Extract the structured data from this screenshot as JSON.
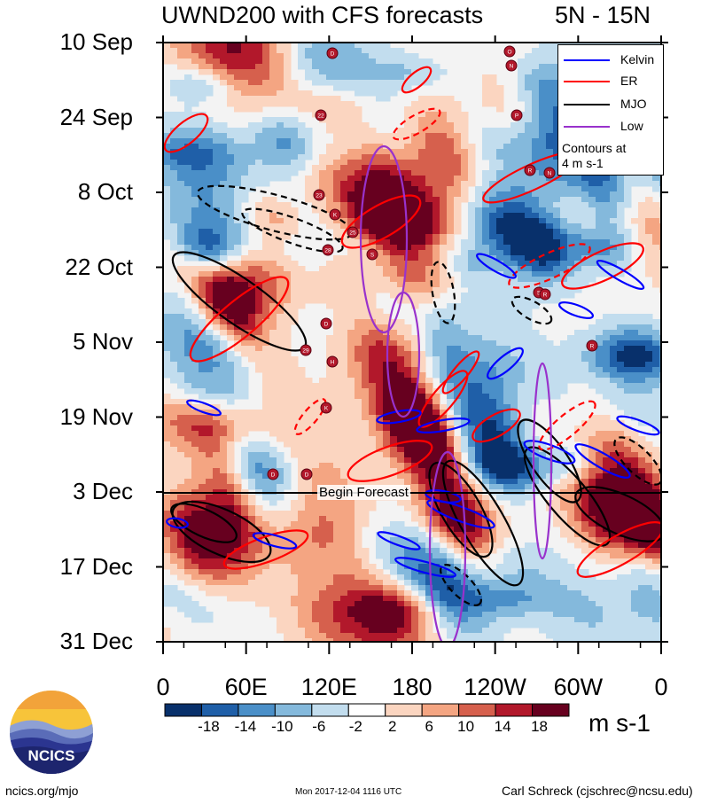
{
  "title": {
    "left": "UWND200 with CFS forecasts",
    "right": "5N - 15N"
  },
  "chart_data": {
    "type": "heatmap",
    "title": "UWND200 with CFS forecasts",
    "region": "5N - 15N",
    "y_ticks": [
      "10 Sep",
      "24 Sep",
      "8 Oct",
      "22 Oct",
      "5 Nov",
      "19 Nov",
      "3 Dec",
      "17 Dec",
      "31 Dec"
    ],
    "x_ticks": [
      "0",
      "60E",
      "120E",
      "180",
      "120W",
      "60W",
      "0"
    ],
    "x_range": [
      0,
      360
    ],
    "forecast_start": "3 Dec",
    "forecast_label": "Begin Forecast",
    "colorbar": {
      "levels": [
        "-18",
        "-14",
        "-10",
        "-6",
        "-2",
        "2",
        "6",
        "10",
        "14",
        "18"
      ],
      "colors": [
        "#08306b",
        "#1f5fa8",
        "#4a8fc8",
        "#84b9dc",
        "#c2ddee",
        "#ffffff",
        "#fbd5c0",
        "#f4a582",
        "#d6604d",
        "#b2182b",
        "#67001f"
      ],
      "units": "m s-1"
    },
    "legend": [
      {
        "label": "Kelvin",
        "color": "#0000ff"
      },
      {
        "label": "ER",
        "color": "#ff0000"
      },
      {
        "label": "MJO",
        "color": "#000000"
      },
      {
        "label": "Low",
        "color": "#9932cc"
      }
    ],
    "contour_note": [
      "Contours at",
      "4 m s-1"
    ],
    "storm_markers": [
      "D",
      "22",
      "23",
      "K",
      "25",
      "28",
      "S",
      "D",
      "29",
      "H",
      "K",
      "D",
      "D",
      "O",
      "N",
      "P",
      "R",
      "N",
      "S",
      "R",
      "R"
    ]
  },
  "logo": {
    "text": "NCICS"
  },
  "footer": {
    "left": "ncics.org/mjo",
    "center": "Mon 2017-12-04 1116 UTC",
    "right": "Carl Schreck (cjschrec@ncsu.edu)"
  }
}
